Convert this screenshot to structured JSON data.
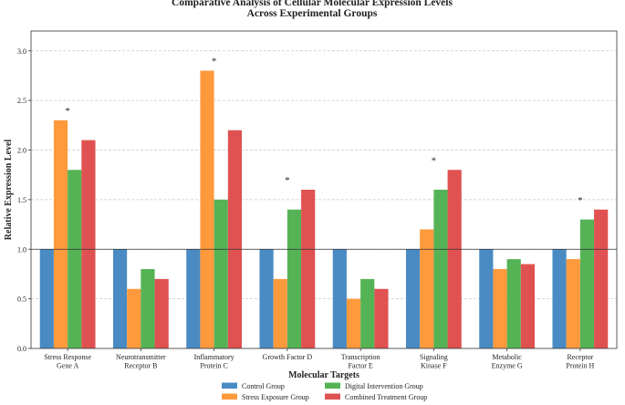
{
  "chart_data": {
    "type": "bar",
    "title_lines": [
      "Comparative Analysis of Cellular Molecular Expression Levels",
      "Across Experimental Groups"
    ],
    "xlabel": "Molecular Targets",
    "ylabel": "Relative Expression Level",
    "ylim": [
      0,
      3.2
    ],
    "yticks": [
      "0.0",
      "0.5",
      "1.0",
      "1.5",
      "2.0",
      "2.5",
      "3.0"
    ],
    "grid": "horizontal dashed",
    "reference_line": 1.0,
    "legend_placement": "bottom-center",
    "categories": [
      [
        "Stress Response",
        "Gene A"
      ],
      [
        "Neurotransmitter",
        "Receptor B"
      ],
      [
        "Inflammatory",
        "Protein C"
      ],
      [
        "Growth Factor D"
      ],
      [
        "Transcription",
        "Factor E"
      ],
      [
        "Signaling",
        "Kinase F"
      ],
      [
        "Metabolic",
        "Enzyme G"
      ],
      [
        "Receptor",
        "Protein H"
      ]
    ],
    "series": [
      {
        "name": "Control Group",
        "color": "#4a8bc4",
        "values": [
          1.0,
          1.0,
          1.0,
          1.0,
          1.0,
          1.0,
          1.0,
          1.0
        ]
      },
      {
        "name": "Stress Exposure Group",
        "color": "#ff9a3c",
        "values": [
          2.3,
          0.6,
          2.8,
          0.7,
          0.5,
          1.2,
          0.8,
          0.9
        ]
      },
      {
        "name": "Digital Intervention Group",
        "color": "#55b355",
        "values": [
          1.8,
          0.8,
          1.5,
          1.4,
          0.7,
          1.6,
          0.9,
          1.3
        ]
      },
      {
        "name": "Combined Treatment Group",
        "color": "#e05252",
        "values": [
          2.1,
          0.7,
          2.2,
          1.6,
          0.6,
          1.8,
          0.85,
          1.4
        ]
      }
    ],
    "significance_marker": "*",
    "significant_categories": [
      0,
      2,
      3,
      5,
      7
    ]
  }
}
